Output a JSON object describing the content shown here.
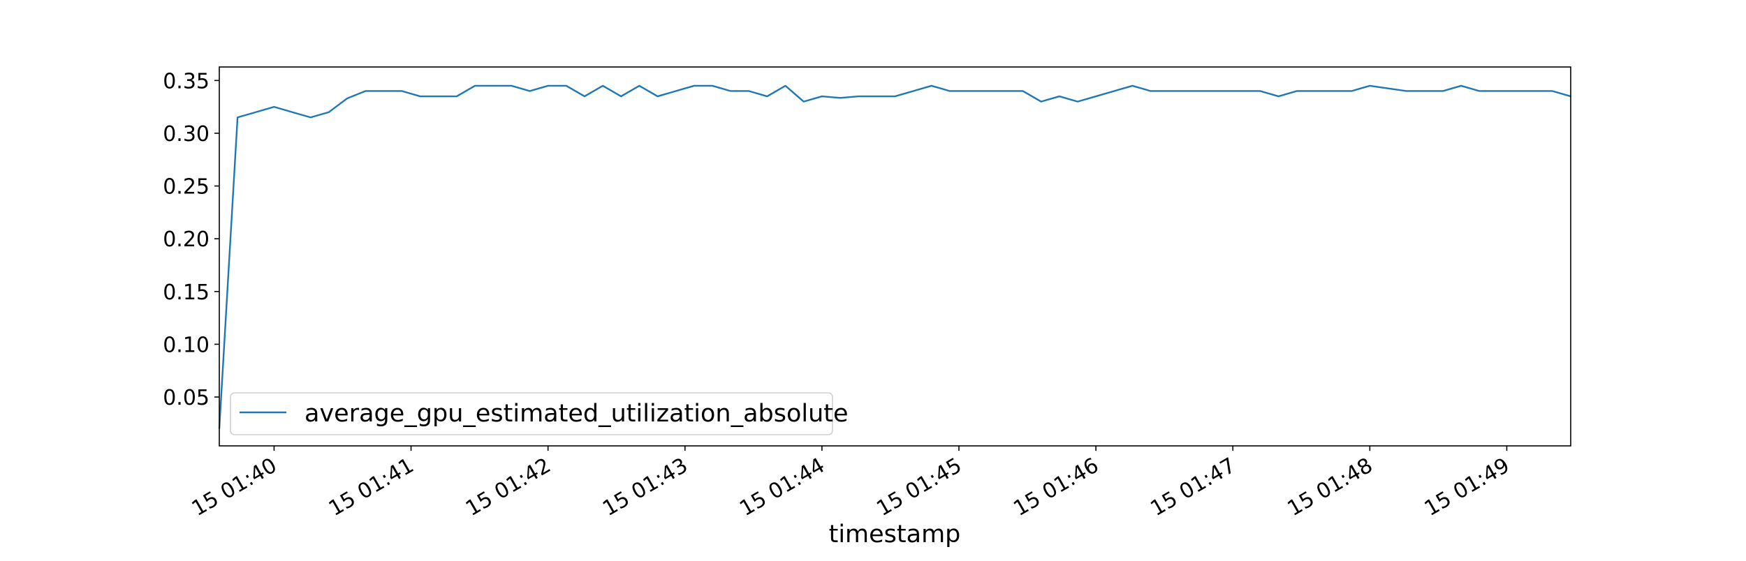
{
  "chart_data": {
    "type": "line",
    "title": "",
    "xlabel": "timestamp",
    "ylabel": "",
    "x_day": "15",
    "x_ticks": [
      "15 01:40",
      "15 01:41",
      "15 01:42",
      "15 01:43",
      "15 01:44",
      "15 01:45",
      "15 01:46",
      "15 01:47",
      "15 01:48",
      "15 01:49"
    ],
    "y_ticks": [
      "0.05",
      "0.10",
      "0.15",
      "0.20",
      "0.25",
      "0.30",
      "0.35"
    ],
    "xlim": [
      "01:39:36",
      "01:49:28"
    ],
    "ylim": [
      0.0037,
      0.3628
    ],
    "grid": false,
    "legend_placement": "lower-left",
    "x": [
      "01:39:36",
      "01:39:44",
      "01:39:52",
      "01:40:00",
      "01:40:08",
      "01:40:16",
      "01:40:24",
      "01:40:32",
      "01:40:40",
      "01:40:48",
      "01:40:56",
      "01:41:04",
      "01:41:12",
      "01:41:20",
      "01:41:28",
      "01:41:36",
      "01:41:44",
      "01:41:52",
      "01:42:00",
      "01:42:08",
      "01:42:16",
      "01:42:24",
      "01:42:32",
      "01:42:40",
      "01:42:48",
      "01:42:56",
      "01:43:04",
      "01:43:12",
      "01:43:20",
      "01:43:28",
      "01:43:36",
      "01:43:44",
      "01:43:52",
      "01:44:00",
      "01:44:08",
      "01:44:16",
      "01:44:24",
      "01:44:32",
      "01:44:40",
      "01:44:48",
      "01:44:56",
      "01:45:04",
      "01:45:12",
      "01:45:20",
      "01:45:28",
      "01:45:36",
      "01:45:44",
      "01:45:52",
      "01:46:00",
      "01:46:08",
      "01:46:16",
      "01:46:24",
      "01:46:32",
      "01:46:40",
      "01:46:48",
      "01:46:56",
      "01:47:04",
      "01:47:12",
      "01:47:20",
      "01:47:28",
      "01:47:36",
      "01:47:44",
      "01:47:52",
      "01:48:00",
      "01:48:08",
      "01:48:16",
      "01:48:24",
      "01:48:32",
      "01:48:40",
      "01:48:48",
      "01:48:56",
      "01:49:04",
      "01:49:12",
      "01:49:20",
      "01:49:28"
    ],
    "series": [
      {
        "name": "average_gpu_estimated_utilization_absolute",
        "color": "#1f77b4",
        "values": [
          0.02,
          0.315,
          0.32,
          0.325,
          0.32,
          0.315,
          0.32,
          0.333,
          0.34,
          0.34,
          0.34,
          0.335,
          0.335,
          0.335,
          0.345,
          0.345,
          0.345,
          0.34,
          0.345,
          0.345,
          0.335,
          0.345,
          0.335,
          0.345,
          0.335,
          0.34,
          0.345,
          0.345,
          0.34,
          0.34,
          0.335,
          0.345,
          0.33,
          0.335,
          0.3335,
          0.335,
          0.335,
          0.335,
          0.34,
          0.345,
          0.34,
          0.34,
          0.34,
          0.34,
          0.34,
          0.33,
          0.335,
          0.33,
          0.335,
          0.34,
          0.345,
          0.34,
          0.34,
          0.34,
          0.34,
          0.34,
          0.34,
          0.34,
          0.335,
          0.34,
          0.34,
          0.34,
          0.34,
          0.345,
          0.3425,
          0.34,
          0.34,
          0.34,
          0.345,
          0.34,
          0.34,
          0.34,
          0.34,
          0.34,
          0.335
        ]
      }
    ]
  }
}
